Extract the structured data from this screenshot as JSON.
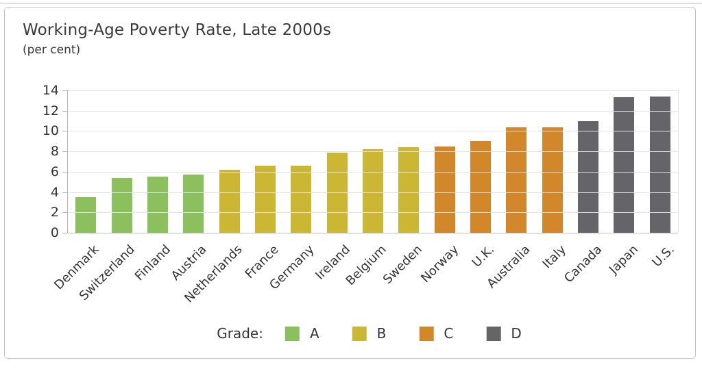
{
  "chart_data": {
    "type": "bar",
    "title": "Working-Age Poverty Rate, Late 2000s",
    "subtitle": "(per cent)",
    "categories": [
      "Denmark",
      "Switzerland",
      "Finland",
      "Austria",
      "Netherlands",
      "France",
      "Germany",
      "Ireland",
      "Belgium",
      "Sweden",
      "Norway",
      "U.K.",
      "Australia",
      "Italy",
      "Canada",
      "Japan",
      "U.S."
    ],
    "values": [
      3.5,
      5.4,
      5.5,
      5.7,
      6.2,
      6.6,
      6.6,
      7.9,
      8.2,
      8.4,
      8.5,
      9.0,
      10.4,
      10.4,
      11.0,
      13.3,
      13.4
    ],
    "grades": [
      "A",
      "A",
      "A",
      "A",
      "B",
      "B",
      "B",
      "B",
      "B",
      "B",
      "C",
      "C",
      "C",
      "C",
      "D",
      "D",
      "D"
    ],
    "grade_colors": {
      "A": "#8cc05e",
      "B": "#cbb733",
      "C": "#d2872b",
      "D": "#646469"
    },
    "legend": {
      "label": "Grade:",
      "entries": [
        "A",
        "B",
        "C",
        "D"
      ],
      "position": "bottom"
    },
    "ylim": [
      0,
      14
    ],
    "yticks": [
      0,
      2,
      4,
      6,
      8,
      10,
      12,
      14
    ],
    "grid": true,
    "bar_label_rotation_deg": -45
  }
}
